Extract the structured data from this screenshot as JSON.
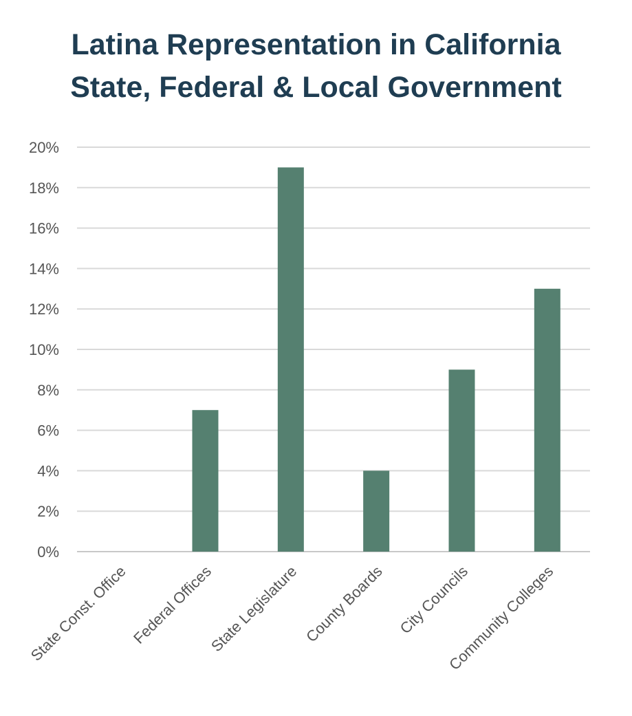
{
  "chart_data": {
    "type": "bar",
    "title_lines": [
      "Latina Representation in California",
      "State, Federal & Local Government"
    ],
    "categories": [
      "State Const. Office",
      "Federal Offices",
      "State Legislature",
      "County Boards",
      "City Councils",
      "Community Colleges"
    ],
    "values": [
      0,
      7,
      19,
      4,
      9,
      13
    ],
    "unit": "%",
    "ylim": [
      0,
      20
    ],
    "yticks": [
      0,
      2,
      4,
      6,
      8,
      10,
      12,
      14,
      16,
      18,
      20
    ],
    "ytick_labels": [
      "0%",
      "2%",
      "4%",
      "6%",
      "8%",
      "10%",
      "12%",
      "14%",
      "16%",
      "18%",
      "20%"
    ],
    "xlabel": "",
    "ylabel": "",
    "grid": true,
    "legend": "none",
    "bar_color": "#558070"
  }
}
